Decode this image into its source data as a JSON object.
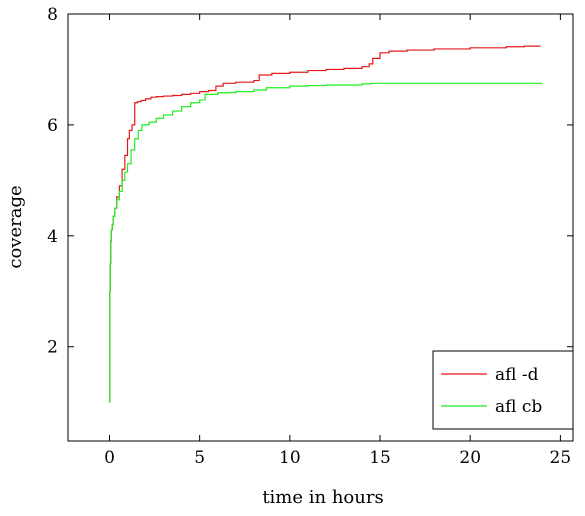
{
  "chart_data": {
    "type": "line",
    "title": "",
    "xlabel": "time in hours",
    "ylabel": "coverage",
    "xlim": [
      -2.3,
      25.7
    ],
    "ylim": [
      0.3,
      8.0
    ],
    "xticks": [
      0,
      5,
      10,
      15,
      20,
      25
    ],
    "yticks": [
      2,
      4,
      6,
      8
    ],
    "grid": false,
    "legend_position": "bottom-right",
    "colors": {
      "afl_d": "#e31a1c",
      "afl_cb": "#22ee22"
    },
    "series": [
      {
        "name": "afl -d",
        "step": true,
        "x": [
          0.0,
          0.02,
          0.04,
          0.07,
          0.1,
          0.15,
          0.2,
          0.3,
          0.4,
          0.55,
          0.7,
          0.85,
          1.0,
          1.1,
          1.25,
          1.4,
          1.55,
          1.75,
          2.0,
          2.3,
          2.6,
          3.0,
          3.5,
          4.0,
          4.5,
          5.0,
          5.5,
          5.9,
          6.3,
          7.0,
          8.0,
          8.3,
          9.0,
          10.0,
          11.0,
          12.0,
          13.0,
          14.0,
          14.4,
          14.6,
          15.0,
          15.5,
          16.5,
          18.0,
          20.0,
          22.0,
          23.0,
          23.9
        ],
        "y": [
          1.0,
          3.0,
          3.5,
          3.9,
          4.1,
          4.2,
          4.35,
          4.5,
          4.7,
          4.9,
          5.2,
          5.45,
          5.75,
          5.9,
          6.0,
          6.4,
          6.42,
          6.44,
          6.47,
          6.5,
          6.51,
          6.52,
          6.53,
          6.55,
          6.57,
          6.6,
          6.62,
          6.7,
          6.75,
          6.77,
          6.8,
          6.9,
          6.93,
          6.95,
          6.98,
          7.0,
          7.02,
          7.05,
          7.1,
          7.2,
          7.3,
          7.33,
          7.35,
          7.37,
          7.39,
          7.41,
          7.42,
          7.42
        ]
      },
      {
        "name": "afl cb",
        "step": true,
        "x": [
          0.0,
          0.02,
          0.04,
          0.07,
          0.1,
          0.15,
          0.2,
          0.3,
          0.4,
          0.55,
          0.7,
          0.85,
          1.0,
          1.2,
          1.4,
          1.6,
          1.8,
          2.2,
          2.6,
          3.0,
          3.5,
          4.0,
          4.5,
          5.0,
          5.3,
          6.0,
          7.0,
          8.0,
          8.7,
          10.0,
          11.0,
          12.0,
          14.0,
          14.5,
          16.0,
          18.0,
          20.0,
          22.0,
          24.0
        ],
        "y": [
          1.0,
          3.0,
          3.5,
          3.9,
          4.1,
          4.2,
          4.35,
          4.5,
          4.65,
          4.8,
          5.0,
          5.15,
          5.3,
          5.55,
          5.75,
          5.9,
          6.0,
          6.05,
          6.12,
          6.18,
          6.25,
          6.33,
          6.4,
          6.45,
          6.55,
          6.58,
          6.6,
          6.63,
          6.67,
          6.7,
          6.71,
          6.72,
          6.74,
          6.75,
          6.75,
          6.75,
          6.75,
          6.75,
          6.75
        ]
      }
    ]
  }
}
